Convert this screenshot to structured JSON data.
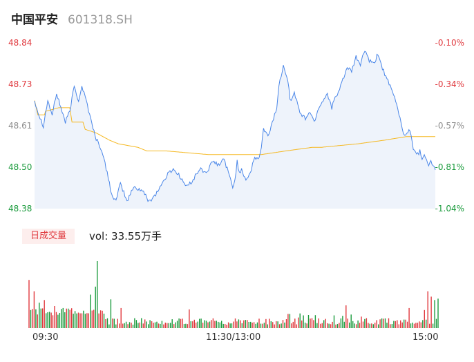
{
  "header": {
    "name": "中国平安",
    "code": "601318.SH"
  },
  "price_axis": {
    "labels": [
      "48.84",
      "48.73",
      "48.61",
      "48.50",
      "48.38"
    ]
  },
  "pct_axis": {
    "labels": [
      "-0.10%",
      "-0.34%",
      "-0.57%",
      "-0.81%",
      "-1.04%"
    ]
  },
  "volume": {
    "tab_label": "日成交量",
    "text": "vol: 33.55万手"
  },
  "time_axis": {
    "labels": [
      "09:30",
      "11:30/13:00",
      "15:00"
    ]
  },
  "colors": {
    "price_line": "#4a86e8",
    "avg_line": "#f5b820",
    "up": "#e0393e",
    "down": "#1a9b3c",
    "fill": "#eef3fb"
  },
  "chart_data": {
    "type": "line",
    "ylim": [
      48.38,
      48.84
    ],
    "n_minutes": 241,
    "price_knots": [
      [
        0,
        48.68
      ],
      [
        4,
        48.64
      ],
      [
        8,
        48.61
      ],
      [
        12,
        48.68
      ],
      [
        16,
        48.64
      ],
      [
        20,
        48.7
      ],
      [
        24,
        48.66
      ],
      [
        28,
        48.62
      ],
      [
        32,
        48.65
      ],
      [
        36,
        48.72
      ],
      [
        40,
        48.68
      ],
      [
        43,
        48.72
      ],
      [
        47,
        48.68
      ],
      [
        50,
        48.64
      ],
      [
        52,
        48.62
      ],
      [
        55,
        48.58
      ],
      [
        60,
        48.55
      ],
      [
        66,
        48.48
      ],
      [
        70,
        48.42
      ],
      [
        74,
        48.4
      ],
      [
        78,
        48.45
      ],
      [
        84,
        48.4
      ],
      [
        90,
        48.44
      ],
      [
        98,
        48.43
      ],
      [
        104,
        48.4
      ],
      [
        110,
        48.42
      ],
      [
        116,
        48.45
      ],
      [
        122,
        48.48
      ],
      [
        126,
        48.49
      ],
      [
        132,
        48.47
      ],
      [
        138,
        48.44
      ],
      [
        144,
        48.46
      ],
      [
        150,
        48.49
      ],
      [
        156,
        48.48
      ],
      [
        162,
        48.51
      ],
      [
        168,
        48.5
      ],
      [
        172,
        48.52
      ],
      [
        176,
        48.48
      ],
      [
        180,
        48.44
      ],
      [
        182,
        48.46
      ],
      [
        184,
        48.51
      ],
      [
        186,
        48.48
      ],
      [
        188,
        48.49
      ],
      [
        192,
        48.46
      ],
      [
        196,
        48.48
      ],
      [
        200,
        48.52
      ],
      [
        204,
        48.52
      ],
      [
        206,
        48.55
      ],
      [
        208,
        48.6
      ],
      [
        212,
        48.58
      ],
      [
        216,
        48.62
      ],
      [
        220,
        48.66
      ],
      [
        222,
        48.72
      ],
      [
        226,
        48.78
      ],
      [
        230,
        48.74
      ],
      [
        232,
        48.68
      ],
      [
        236,
        48.7
      ],
      [
        240,
        48.66
      ],
      [
        242,
        48.64
      ],
      [
        246,
        48.63
      ],
      [
        250,
        48.65
      ],
      [
        254,
        48.62
      ],
      [
        258,
        48.66
      ],
      [
        262,
        48.68
      ],
      [
        266,
        48.7
      ],
      [
        270,
        48.66
      ],
      [
        272,
        48.68
      ],
      [
        276,
        48.7
      ],
      [
        280,
        48.74
      ],
      [
        284,
        48.77
      ],
      [
        288,
        48.76
      ],
      [
        292,
        48.8
      ],
      [
        296,
        48.78
      ],
      [
        300,
        48.82
      ],
      [
        304,
        48.79
      ],
      [
        308,
        48.78
      ],
      [
        312,
        48.81
      ],
      [
        316,
        48.77
      ],
      [
        320,
        48.74
      ],
      [
        324,
        48.71
      ],
      [
        328,
        48.68
      ],
      [
        332,
        48.63
      ],
      [
        336,
        48.58
      ],
      [
        340,
        48.6
      ],
      [
        342,
        48.58
      ],
      [
        344,
        48.55
      ],
      [
        346,
        48.54
      ],
      [
        348,
        48.53
      ],
      [
        350,
        48.54
      ],
      [
        352,
        48.52
      ],
      [
        354,
        48.53
      ],
      [
        356,
        48.52
      ],
      [
        358,
        48.5
      ],
      [
        360,
        48.51
      ],
      [
        362,
        48.5
      ],
      [
        364,
        48.49
      ]
    ],
    "avg_knots": [
      [
        0,
        48.68
      ],
      [
        3,
        48.64
      ],
      [
        9,
        48.64
      ],
      [
        10,
        48.65
      ],
      [
        22,
        48.66
      ],
      [
        32,
        48.66
      ],
      [
        34,
        48.62
      ],
      [
        44,
        48.62
      ],
      [
        46,
        48.6
      ],
      [
        56,
        48.59
      ],
      [
        62,
        48.58
      ],
      [
        68,
        48.57
      ],
      [
        76,
        48.56
      ],
      [
        94,
        48.55
      ],
      [
        102,
        48.54
      ],
      [
        110,
        48.54
      ],
      [
        120,
        48.54
      ],
      [
        158,
        48.53
      ],
      [
        200,
        48.53
      ],
      [
        206,
        48.53
      ],
      [
        228,
        48.54
      ],
      [
        252,
        48.55
      ],
      [
        260,
        48.55
      ],
      [
        294,
        48.56
      ],
      [
        318,
        48.57
      ],
      [
        338,
        48.58
      ],
      [
        364,
        48.58
      ]
    ],
    "volume_bars": {
      "max": 1.0,
      "min_value": 0.1,
      "colors_note": "red up / green down"
    }
  }
}
